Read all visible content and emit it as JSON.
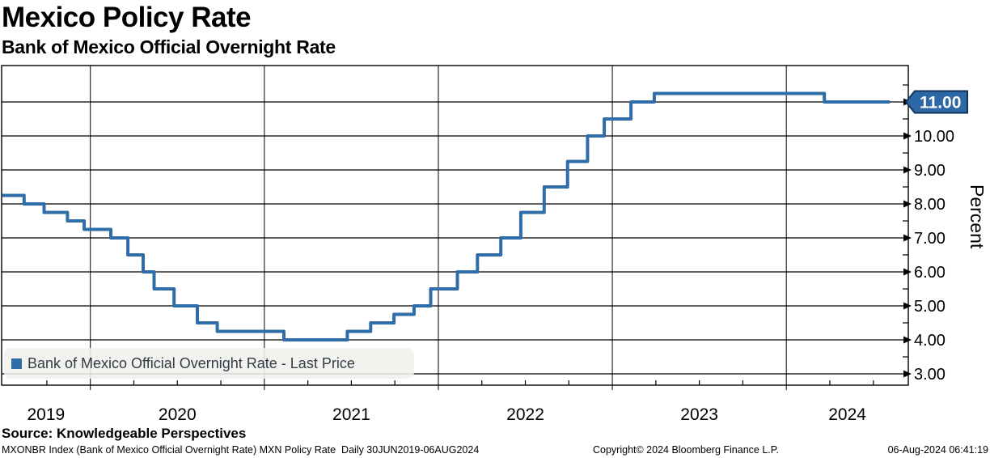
{
  "header": {
    "title": "Mexico Policy Rate",
    "subtitle": "Bank of Mexico Official Overnight Rate"
  },
  "legend": {
    "label": "Bank of Mexico Official Overnight Rate - Last Price",
    "marker_color": "#2e6da8"
  },
  "last_price_tag": {
    "value": "11.00",
    "fill": "#2b68a5",
    "border": "#10335c",
    "text_color": "#ffffff"
  },
  "chart_data": {
    "type": "line",
    "subtype": "step",
    "title": "Mexico Policy Rate",
    "xlabel": "",
    "ylabel": "Percent",
    "grid": true,
    "line_color": "#2e6da8",
    "grid_color": "#000000",
    "xlim": [
      2019.49,
      2024.701
    ],
    "ylim": [
      2.667,
      12.071
    ],
    "x_tick_years": [
      2019,
      2020,
      2021,
      2022,
      2023,
      2024
    ],
    "x_tick_labels": [
      "2019",
      "2020",
      "2021",
      "2022",
      "2023",
      "2024"
    ],
    "y_tick_values": [
      3,
      4,
      5,
      6,
      7,
      8,
      9,
      10,
      11
    ],
    "y_tick_labels": [
      "3.00",
      "4.00",
      "5.00",
      "6.00",
      "7.00",
      "8.00",
      "9.00",
      "10.00",
      "11.00"
    ],
    "series": [
      {
        "name": "Bank of Mexico Official Overnight Rate - Last Price",
        "end_date": "2024-08-06",
        "points": [
          {
            "date": "2019-06-30",
            "value": 8.25
          },
          {
            "date": "2019-08-15",
            "value": 8.0
          },
          {
            "date": "2019-09-26",
            "value": 7.75
          },
          {
            "date": "2019-11-14",
            "value": 7.5
          },
          {
            "date": "2019-12-19",
            "value": 7.25
          },
          {
            "date": "2020-02-13",
            "value": 7.0
          },
          {
            "date": "2020-03-20",
            "value": 6.5
          },
          {
            "date": "2020-04-21",
            "value": 6.0
          },
          {
            "date": "2020-05-14",
            "value": 5.5
          },
          {
            "date": "2020-06-25",
            "value": 5.0
          },
          {
            "date": "2020-08-13",
            "value": 4.5
          },
          {
            "date": "2020-09-24",
            "value": 4.25
          },
          {
            "date": "2021-02-11",
            "value": 4.0
          },
          {
            "date": "2021-06-24",
            "value": 4.25
          },
          {
            "date": "2021-08-12",
            "value": 4.5
          },
          {
            "date": "2021-09-30",
            "value": 4.75
          },
          {
            "date": "2021-11-11",
            "value": 5.0
          },
          {
            "date": "2021-12-16",
            "value": 5.5
          },
          {
            "date": "2022-02-10",
            "value": 6.0
          },
          {
            "date": "2022-03-24",
            "value": 6.5
          },
          {
            "date": "2022-05-12",
            "value": 7.0
          },
          {
            "date": "2022-06-23",
            "value": 7.75
          },
          {
            "date": "2022-08-11",
            "value": 8.5
          },
          {
            "date": "2022-09-29",
            "value": 9.25
          },
          {
            "date": "2022-11-10",
            "value": 10.0
          },
          {
            "date": "2022-12-15",
            "value": 10.5
          },
          {
            "date": "2023-02-09",
            "value": 11.0
          },
          {
            "date": "2023-03-30",
            "value": 11.25
          },
          {
            "date": "2024-03-21",
            "value": 11.0
          }
        ]
      }
    ],
    "legend_position": "bottom-left"
  },
  "source": "Source: Knowledgeable Perspectives",
  "footer": {
    "left": "MXONBR Index (Bank of Mexico Official Overnight Rate) MXN Policy Rate  Daily 30JUN2019-06AUG2024",
    "center": "Copyright© 2024 Bloomberg Finance L.P.",
    "right": "06-Aug-2024 06:41:19"
  }
}
